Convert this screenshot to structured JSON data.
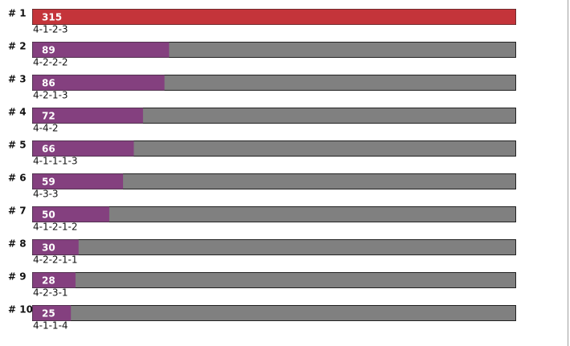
{
  "chart_data": {
    "type": "bar",
    "ranks": [
      "# 1",
      "# 2",
      "# 3",
      "# 4",
      "# 5",
      "# 6",
      "# 7",
      "# 8",
      "# 9",
      "# 10"
    ],
    "categories": [
      "4-1-2-3",
      "4-2-2-2",
      "4-2-1-3",
      "4-4-2",
      "4-1-1-1-3",
      "4-3-3",
      "4-1-2-1-2",
      "4-2-2-1-1",
      "4-2-3-1",
      "4-1-1-4"
    ],
    "values": [
      315,
      89,
      86,
      72,
      66,
      59,
      50,
      30,
      28,
      25
    ],
    "colors": [
      "#c4343a",
      "#84407f",
      "#84407f",
      "#84407f",
      "#84407f",
      "#84407f",
      "#84407f",
      "#84407f",
      "#84407f",
      "#84407f"
    ],
    "track_color": "#808080",
    "xlim": [
      0,
      315
    ]
  }
}
